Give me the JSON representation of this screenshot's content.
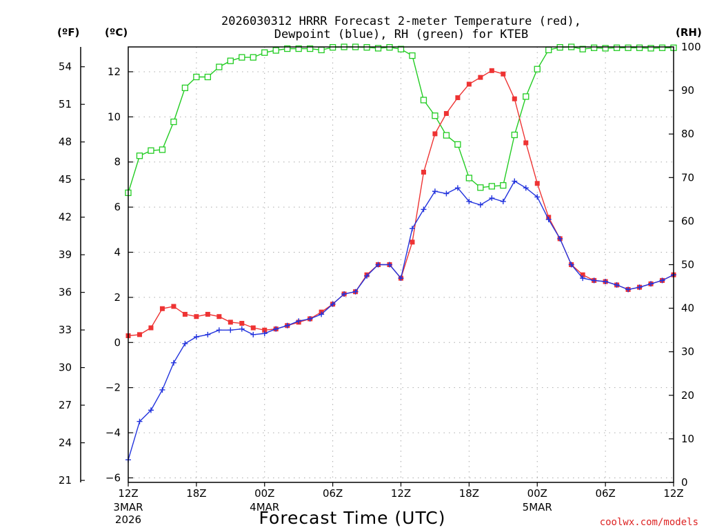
{
  "chart_data": {
    "type": "line",
    "title": [
      "2026030312 HRRR Forecast 2-meter Temperature (red),",
      "Dewpoint (blue), RH (green) for KTEB"
    ],
    "xlabel": "Forecast Time (UTC)",
    "credit": "coolwx.com/models",
    "units": {
      "fahrenheit": "(ºF)",
      "celsius": "(ºC)",
      "rh": "(RH)"
    },
    "x_ticks": [
      {
        "hour": 0,
        "label": "12Z",
        "sub": [
          "3MAR",
          "2026"
        ]
      },
      {
        "hour": 6,
        "label": "18Z",
        "sub": []
      },
      {
        "hour": 12,
        "label": "00Z",
        "sub": [
          "4MAR"
        ]
      },
      {
        "hour": 18,
        "label": "06Z",
        "sub": []
      },
      {
        "hour": 24,
        "label": "12Z",
        "sub": []
      },
      {
        "hour": 30,
        "label": "18Z",
        "sub": []
      },
      {
        "hour": 36,
        "label": "00Z",
        "sub": [
          "5MAR"
        ]
      },
      {
        "hour": 42,
        "label": "06Z",
        "sub": []
      },
      {
        "hour": 48,
        "label": "12Z",
        "sub": []
      }
    ],
    "xlim": [
      0,
      48
    ],
    "ylim_celsius": [
      -6.2,
      13.1
    ],
    "ylim_rh": [
      0,
      100
    ],
    "celsius_ticks": [
      -6,
      -4,
      -2,
      0,
      2,
      4,
      6,
      8,
      10,
      12
    ],
    "fahrenheit_ticks": [
      21,
      24,
      27,
      30,
      33,
      36,
      39,
      42,
      45,
      48,
      51,
      54
    ],
    "rh_ticks": [
      0,
      10,
      20,
      30,
      40,
      50,
      60,
      70,
      80,
      90,
      100
    ],
    "hours": [
      0,
      1,
      2,
      3,
      4,
      5,
      6,
      7,
      8,
      9,
      10,
      11,
      12,
      13,
      14,
      15,
      16,
      17,
      18,
      19,
      20,
      21,
      22,
      23,
      24,
      25,
      26,
      27,
      28,
      29,
      30,
      31,
      32,
      33,
      34,
      35,
      36,
      37,
      38,
      39,
      40,
      41,
      42,
      43,
      44,
      45,
      46,
      47,
      48
    ],
    "series": [
      {
        "name": "Temperature",
        "color": "#ee3333",
        "marker": "filled-square",
        "values": [
          0.3,
          0.35,
          0.65,
          1.5,
          1.6,
          1.25,
          1.15,
          1.25,
          1.15,
          0.9,
          0.85,
          0.65,
          0.55,
          0.6,
          0.75,
          0.9,
          1.05,
          1.35,
          1.7,
          2.15,
          2.25,
          3.0,
          3.45,
          3.45,
          2.85,
          4.45,
          7.55,
          9.25,
          10.15,
          10.85,
          11.45,
          11.75,
          12.05,
          11.9,
          10.8,
          8.85,
          7.05,
          5.55,
          4.6,
          3.45,
          3.0,
          2.75,
          2.7,
          2.55,
          2.35,
          2.45,
          2.6,
          2.75,
          3.0
        ]
      },
      {
        "name": "Dewpoint",
        "color": "#2233dd",
        "marker": "plus",
        "values": [
          -5.2,
          -3.5,
          -3.0,
          -2.1,
          -0.9,
          -0.05,
          0.25,
          0.35,
          0.55,
          0.55,
          0.6,
          0.35,
          0.4,
          0.6,
          0.75,
          0.95,
          1.05,
          1.25,
          1.7,
          2.15,
          2.25,
          2.95,
          3.45,
          3.45,
          2.85,
          5.05,
          5.9,
          6.7,
          6.6,
          6.85,
          6.25,
          6.1,
          6.4,
          6.25,
          7.15,
          6.85,
          6.45,
          5.45,
          4.6,
          3.45,
          2.85,
          2.75,
          2.7,
          2.55,
          2.35,
          2.45,
          2.6,
          2.75,
          3.0
        ]
      },
      {
        "name": "RH",
        "color": "#22cc22",
        "marker": "open-square",
        "values": [
          66.5,
          75,
          76.2,
          76.4,
          82.8,
          90.6,
          93.1,
          93.1,
          95.4,
          96.8,
          97.6,
          97.6,
          98.7,
          99.2,
          99.6,
          99.6,
          99.6,
          99.3,
          99.9,
          100,
          100,
          99.9,
          99.7,
          99.9,
          99.5,
          98,
          87.8,
          84.2,
          79.7,
          77.6,
          69.9,
          67.7,
          68,
          68.2,
          79.8,
          88.6,
          94.9,
          99.3,
          99.9,
          100,
          99.5,
          99.8,
          99.7,
          99.8,
          99.8,
          99.8,
          99.7,
          99.8,
          99.8
        ]
      }
    ]
  }
}
